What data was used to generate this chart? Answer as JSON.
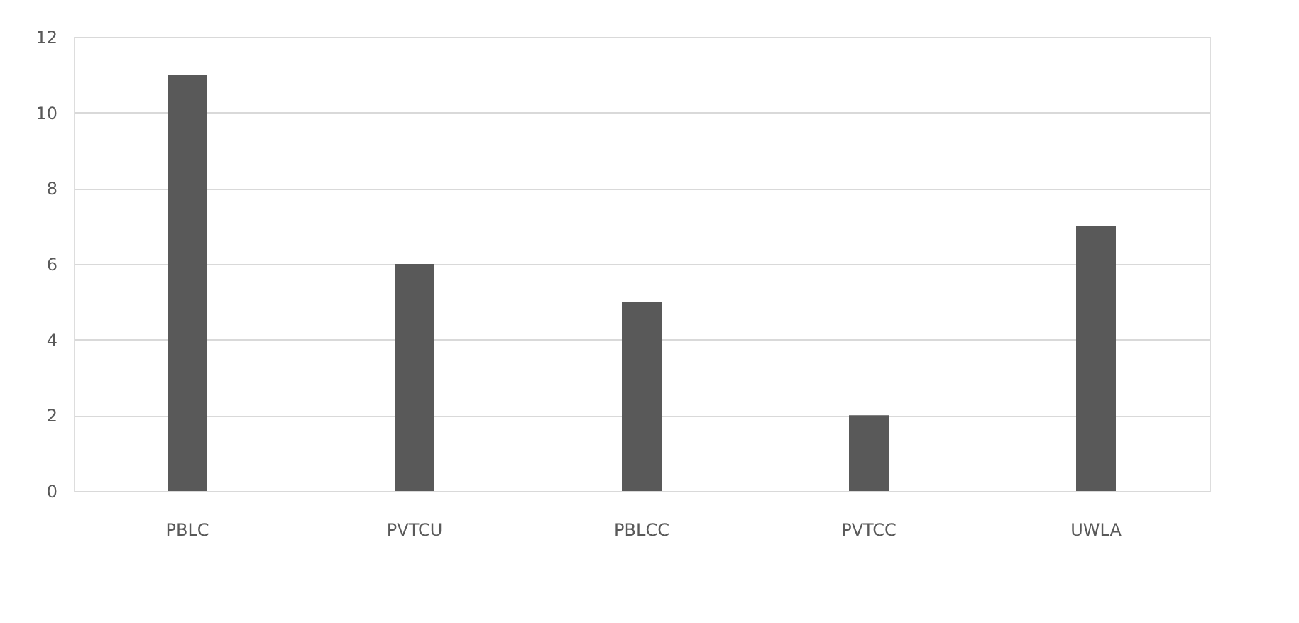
{
  "chart_data": {
    "type": "bar",
    "categories": [
      "PBLC",
      "PVTCU",
      "PBLCC",
      "PVTCC",
      "UWLA"
    ],
    "values": [
      11,
      6,
      5,
      2,
      7
    ],
    "color": "#595959",
    "ylim": [
      0,
      12
    ],
    "yticks": [
      0,
      2,
      4,
      6,
      8,
      10,
      12
    ],
    "grid": "y"
  }
}
